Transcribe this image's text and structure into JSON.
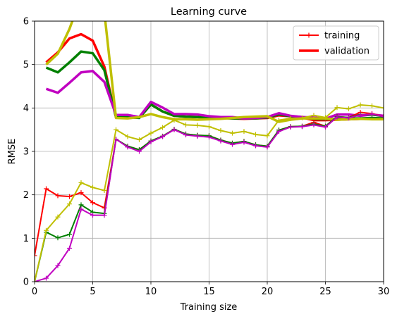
{
  "chart_data": {
    "type": "line",
    "title": "Learning curve",
    "xlabel": "Training size",
    "ylabel": "RMSE",
    "xlim": [
      0,
      30
    ],
    "ylim": [
      0,
      6
    ],
    "x_ticks": [
      0,
      5,
      10,
      15,
      20,
      25,
      30
    ],
    "y_ticks": [
      0,
      1,
      2,
      3,
      4,
      5,
      6
    ],
    "grid": true,
    "legend_position": "top-right",
    "legend": [
      {
        "label": "training",
        "color": "#ff0000",
        "style": "thin-plus"
      },
      {
        "label": "validation",
        "color": "#ff0000",
        "style": "thick"
      }
    ],
    "series": [
      {
        "role": "training",
        "color": "#ff0000",
        "x": [
          0,
          1,
          2,
          3,
          4,
          5,
          6,
          7,
          8,
          9,
          10,
          11,
          12,
          13,
          14,
          15,
          16,
          17,
          18,
          19,
          20,
          21,
          22,
          23,
          24,
          25,
          26,
          27,
          28,
          29,
          30
        ],
        "y": [
          0.6,
          2.14,
          1.98,
          1.96,
          2.05,
          1.82,
          1.7,
          3.28,
          3.12,
          3.04,
          3.24,
          3.35,
          3.51,
          3.4,
          3.37,
          3.36,
          3.26,
          3.19,
          3.23,
          3.15,
          3.12,
          3.49,
          3.57,
          3.58,
          3.67,
          3.58,
          3.8,
          3.78,
          3.9,
          3.87,
          3.8
        ]
      },
      {
        "role": "training",
        "color": "#008000",
        "x": [
          0,
          1,
          2,
          3,
          4,
          5,
          6,
          7,
          8,
          9,
          10,
          11,
          12,
          13,
          14,
          15,
          16,
          17,
          18,
          19,
          20,
          21,
          22,
          23,
          24,
          25,
          26,
          27,
          28,
          29,
          30
        ],
        "y": [
          0,
          1.14,
          1.01,
          1.09,
          1.77,
          1.6,
          1.57,
          3.28,
          3.12,
          3.04,
          3.24,
          3.35,
          3.51,
          3.4,
          3.37,
          3.36,
          3.26,
          3.19,
          3.23,
          3.15,
          3.12,
          3.49,
          3.57,
          3.58,
          3.63,
          3.58,
          3.8,
          3.78,
          3.85,
          3.84,
          3.8
        ]
      },
      {
        "role": "training",
        "color": "#c000c0",
        "x": [
          0,
          1,
          2,
          3,
          4,
          5,
          6,
          7,
          8,
          9,
          10,
          11,
          12,
          13,
          14,
          15,
          16,
          17,
          18,
          19,
          20,
          21,
          22,
          23,
          24,
          25,
          26,
          27,
          28,
          29,
          30
        ],
        "y": [
          0,
          0.08,
          0.37,
          0.77,
          1.67,
          1.53,
          1.53,
          3.28,
          3.1,
          3.0,
          3.22,
          3.34,
          3.5,
          3.38,
          3.35,
          3.33,
          3.24,
          3.16,
          3.21,
          3.13,
          3.1,
          3.46,
          3.56,
          3.57,
          3.61,
          3.56,
          3.79,
          3.77,
          3.84,
          3.86,
          3.8
        ]
      },
      {
        "role": "training",
        "color": "#bfbf00",
        "x": [
          0,
          1,
          2,
          3,
          4,
          5,
          6,
          7,
          8,
          9,
          10,
          11,
          12,
          13,
          14,
          15,
          16,
          17,
          18,
          19,
          20,
          21,
          22,
          23,
          24,
          25,
          26,
          27,
          28,
          29,
          30
        ],
        "y": [
          0,
          1.18,
          1.49,
          1.79,
          2.28,
          2.17,
          2.1,
          3.5,
          3.34,
          3.27,
          3.42,
          3.55,
          3.72,
          3.61,
          3.6,
          3.57,
          3.48,
          3.42,
          3.46,
          3.39,
          3.36,
          3.72,
          3.76,
          3.77,
          3.83,
          3.78,
          4.01,
          3.98,
          4.07,
          4.05,
          4.0
        ]
      },
      {
        "role": "validation",
        "color": "#ff0000",
        "x": [
          1,
          2,
          3,
          4,
          5,
          6,
          7,
          8,
          9,
          10,
          11,
          12,
          13,
          14,
          15,
          16,
          17,
          18,
          19,
          20,
          21,
          22,
          23,
          24,
          25,
          26,
          27,
          28,
          29,
          30
        ],
        "y": [
          5.05,
          5.28,
          5.6,
          5.7,
          5.55,
          4.95,
          3.78,
          3.77,
          3.78,
          4.08,
          3.92,
          3.82,
          3.8,
          3.79,
          3.78,
          3.77,
          3.76,
          3.75,
          3.76,
          3.77,
          3.83,
          3.81,
          3.78,
          3.72,
          3.72,
          3.73,
          3.74,
          3.75,
          3.76,
          3.76
        ]
      },
      {
        "role": "validation",
        "color": "#008000",
        "x": [
          1,
          2,
          3,
          4,
          5,
          6,
          7,
          8,
          9,
          10,
          11,
          12,
          13,
          14,
          15,
          16,
          17,
          18,
          19,
          20,
          21,
          22,
          23,
          24,
          25,
          26,
          27,
          28,
          29,
          30
        ],
        "y": [
          4.93,
          4.82,
          5.05,
          5.3,
          5.26,
          4.87,
          3.79,
          3.79,
          3.77,
          4.08,
          3.92,
          3.82,
          3.8,
          3.79,
          3.78,
          3.77,
          3.76,
          3.76,
          3.76,
          3.78,
          3.85,
          3.81,
          3.79,
          3.75,
          3.74,
          3.75,
          3.76,
          3.76,
          3.77,
          3.76
        ]
      },
      {
        "role": "validation",
        "color": "#c000c0",
        "x": [
          1,
          2,
          3,
          4,
          5,
          6,
          7,
          8,
          9,
          10,
          11,
          12,
          13,
          14,
          15,
          16,
          17,
          18,
          19,
          20,
          21,
          22,
          23,
          24,
          25,
          26,
          27,
          28,
          29,
          30
        ],
        "y": [
          4.44,
          4.35,
          4.58,
          4.82,
          4.85,
          4.6,
          3.84,
          3.84,
          3.79,
          4.14,
          4.01,
          3.86,
          3.86,
          3.85,
          3.81,
          3.79,
          3.79,
          3.76,
          3.77,
          3.79,
          3.88,
          3.82,
          3.79,
          3.78,
          3.75,
          3.85,
          3.85,
          3.82,
          3.85,
          3.82
        ]
      },
      {
        "role": "validation",
        "color": "#bfbf00",
        "x": [
          1,
          2,
          3,
          4,
          5,
          6,
          7,
          8,
          9,
          10,
          11,
          12,
          13,
          14,
          15,
          16,
          17,
          18,
          19,
          20,
          21,
          22,
          23,
          24,
          25,
          26,
          27,
          28,
          29,
          30
        ],
        "y": [
          5.0,
          5.25,
          5.82,
          6.55,
          6.6,
          6.2,
          3.77,
          3.76,
          3.79,
          3.86,
          3.79,
          3.74,
          3.74,
          3.73,
          3.74,
          3.75,
          3.77,
          3.79,
          3.8,
          3.81,
          3.68,
          3.73,
          3.76,
          3.76,
          3.76,
          3.73,
          3.74,
          3.75,
          3.74,
          3.74
        ]
      }
    ]
  }
}
